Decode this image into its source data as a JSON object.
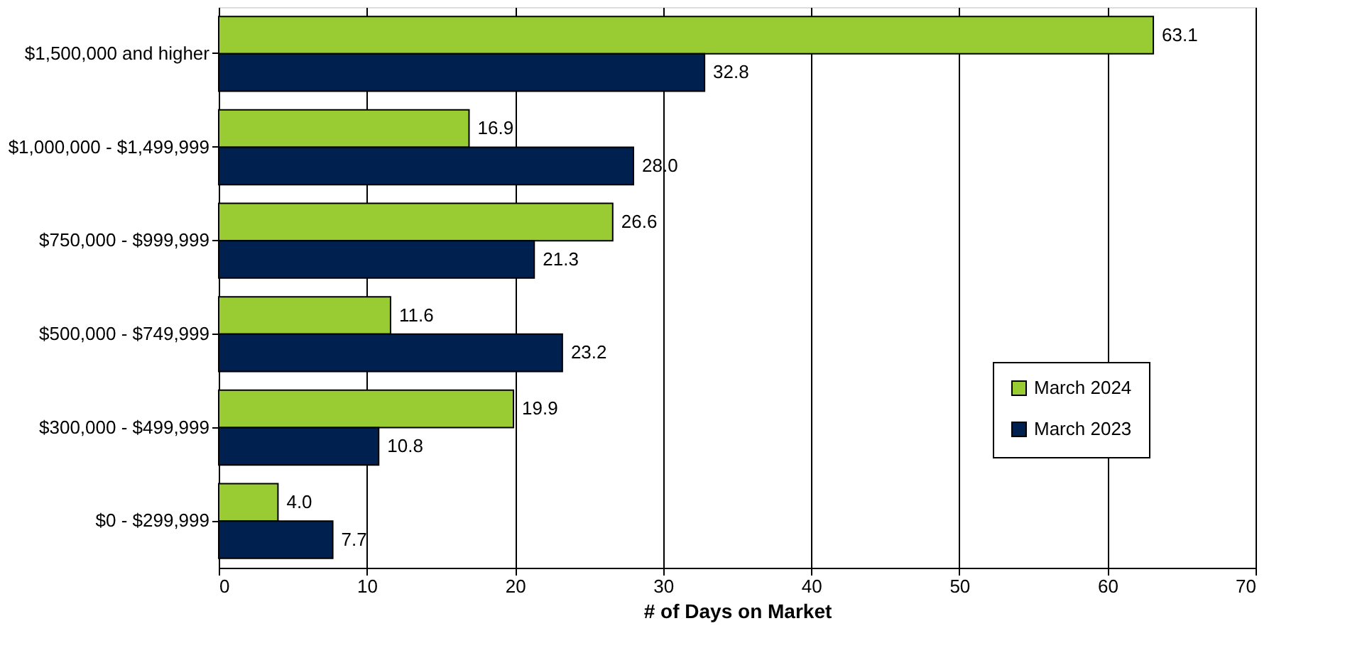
{
  "chart_data": {
    "type": "bar",
    "orientation": "horizontal",
    "xlabel": "# of Days on Market",
    "categories": [
      "$1,500,000 and higher",
      "$1,000,000 - $1,499,999",
      "$750,000 - $999,999",
      "$500,000 - $749,999",
      "$300,000 - $499,999",
      "$0 - $299,999"
    ],
    "series": [
      {
        "name": "March 2024",
        "color": "#99cc33",
        "values": [
          63.1,
          16.9,
          26.6,
          11.6,
          19.9,
          4.0
        ],
        "value_labels": [
          "63.1",
          "16.9",
          "26.6",
          "11.6",
          "19.9",
          "4.0"
        ]
      },
      {
        "name": "March 2023",
        "color": "#002050",
        "values": [
          32.8,
          28.0,
          21.3,
          23.2,
          10.8,
          7.7
        ],
        "value_labels": [
          "32.8",
          "28.0",
          "21.3",
          "23.2",
          "10.8",
          "7.7"
        ]
      }
    ],
    "xlim": [
      0,
      70
    ],
    "xticks": [
      0,
      10,
      20,
      30,
      40,
      50,
      60,
      70
    ],
    "grid": "x",
    "legend": "right"
  }
}
